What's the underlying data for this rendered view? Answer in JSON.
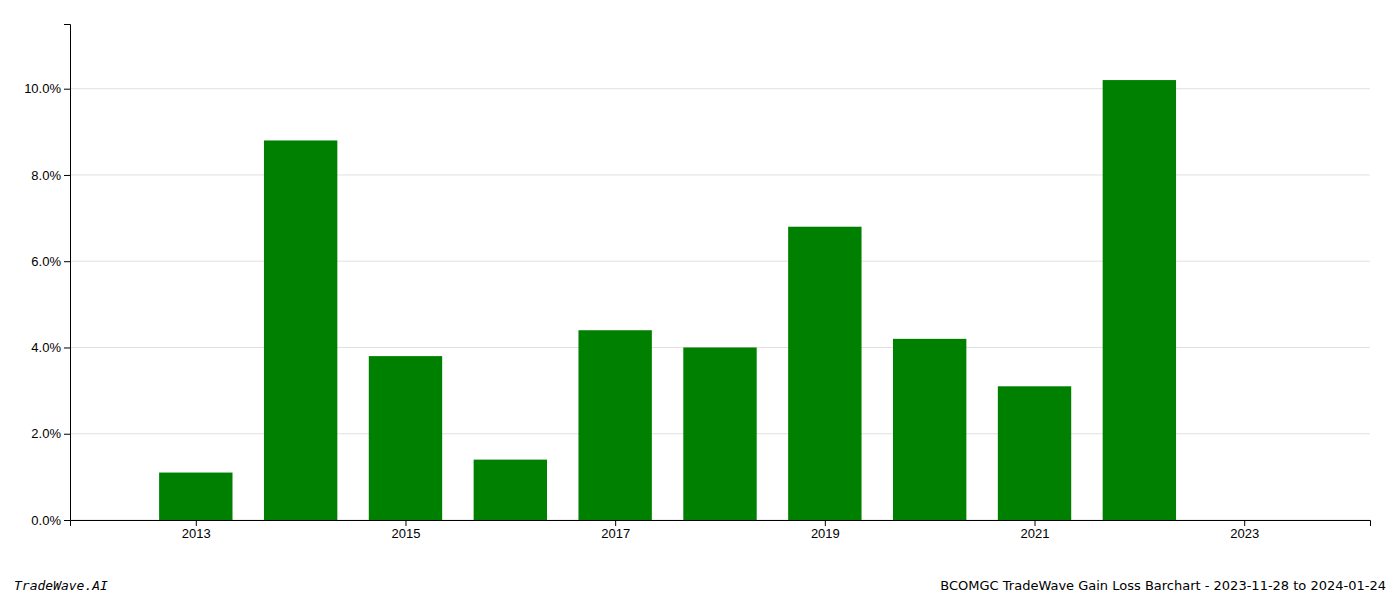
{
  "chart_data": {
    "type": "bar",
    "x": [
      2013,
      2014,
      2015,
      2016,
      2017,
      2018,
      2019,
      2020,
      2021,
      2022
    ],
    "values": [
      0.011,
      0.088,
      0.038,
      0.014,
      0.044,
      0.04,
      0.068,
      0.042,
      0.031,
      0.102
    ],
    "color": "#008000",
    "xlim": [
      2011.8,
      2024.2
    ],
    "xticks": [
      2013,
      2015,
      2017,
      2019,
      2021,
      2023
    ],
    "ylim": [
      0.0,
      0.115
    ],
    "yticks": [
      {
        "value": 0.0,
        "label": "0.0%"
      },
      {
        "value": 0.02,
        "label": "2.0%"
      },
      {
        "value": 0.04,
        "label": "4.0%"
      },
      {
        "value": 0.06,
        "label": "6.0%"
      },
      {
        "value": 0.08,
        "label": "8.0%"
      },
      {
        "value": 0.1,
        "label": "10.0%"
      }
    ],
    "grid": true,
    "annotations": [
      "TradeWave.AI",
      "BCOMGC TradeWave Gain Loss Barchart - 2023-11-28 to 2024-01-24"
    ]
  }
}
